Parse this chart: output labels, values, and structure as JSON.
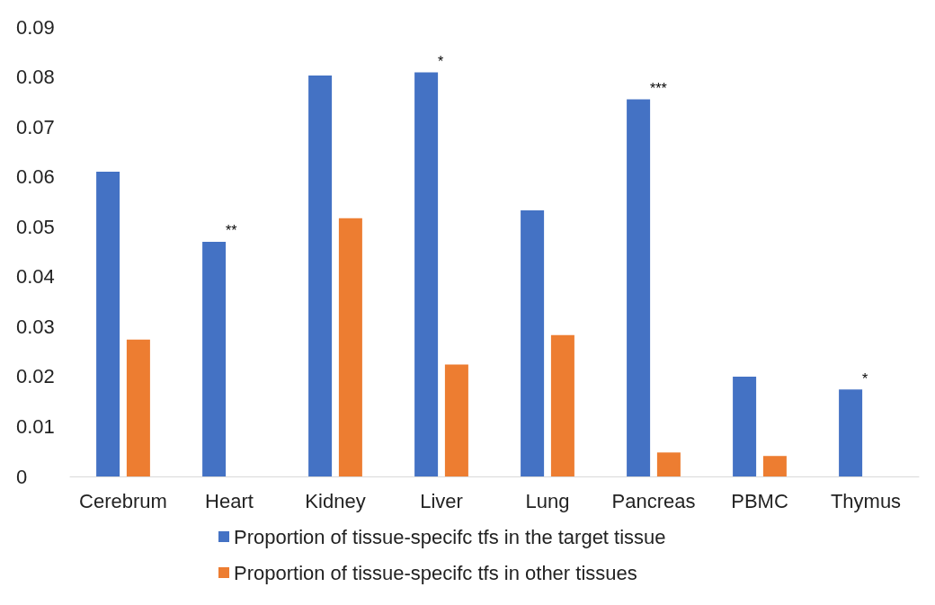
{
  "chart_data": {
    "type": "bar",
    "categories": [
      "Cerebrum",
      "Heart",
      "Kidney",
      "Liver",
      "Lung",
      "Pancreas",
      "PBMC",
      "Thymus"
    ],
    "series": [
      {
        "name": "Proportion of tissue-specifc tfs in the target tissue",
        "color": "#4472c4",
        "values": [
          0.061,
          0.047,
          0.0803,
          0.0809,
          0.0533,
          0.0755,
          0.02,
          0.0174
        ]
      },
      {
        "name": "Proportion of tissue-specifc tfs in other tissues",
        "color": "#ed7d31",
        "values": [
          0.0274,
          0,
          0.0517,
          0.0224,
          0.0283,
          0.0048,
          0.0041,
          0
        ]
      }
    ],
    "ylim": [
      0,
      0.09
    ],
    "yticks": [
      0,
      0.01,
      0.02,
      0.03,
      0.04,
      0.05,
      0.06,
      0.07,
      0.08,
      0.09
    ],
    "grid": false,
    "legend": "bottom",
    "annotations": [
      {
        "text": "**",
        "x": "Heart",
        "y": 0.047
      },
      {
        "text": "*",
        "x": "Liver",
        "y": 0.0809
      },
      {
        "text": "***",
        "x": "Pancreas",
        "y": 0.0755
      },
      {
        "text": "*",
        "x": "Thymus",
        "y": 0.0174
      }
    ]
  }
}
